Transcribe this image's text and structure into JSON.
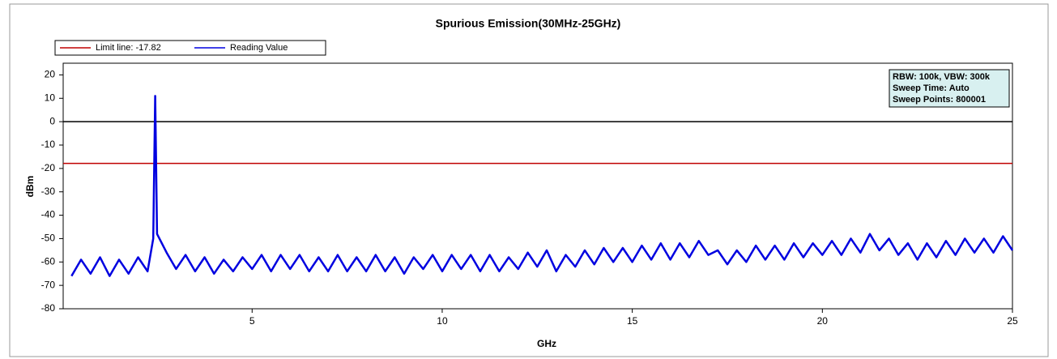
{
  "chart_data": {
    "type": "line",
    "title": "Spurious Emission(30MHz-25GHz)",
    "xlabel": "GHz",
    "ylabel": "dBm",
    "xlim": [
      0.03,
      25
    ],
    "ylim": [
      -80,
      25
    ],
    "xticks": [
      5,
      10,
      15,
      20,
      25
    ],
    "yticks": [
      -80,
      -70,
      -60,
      -50,
      -40,
      -30,
      -20,
      -10,
      0,
      10,
      20
    ],
    "reference_line": 0,
    "limit_line": {
      "name": "Limit line: -17.82",
      "value": -17.82,
      "color": "#c00000"
    },
    "annotation": [
      "RBW: 100k, VBW: 300k",
      "Sweep Time: Auto",
      "Sweep Points: 800001"
    ],
    "legend": "top-left",
    "x": [
      0.25,
      0.5,
      0.75,
      1.0,
      1.25,
      1.5,
      1.75,
      2.0,
      2.25,
      2.4,
      2.45,
      2.5,
      2.75,
      3.0,
      3.25,
      3.5,
      3.75,
      4.0,
      4.25,
      4.5,
      4.75,
      5.0,
      5.25,
      5.5,
      5.75,
      6.0,
      6.25,
      6.5,
      6.75,
      7.0,
      7.25,
      7.5,
      7.75,
      8.0,
      8.25,
      8.5,
      8.75,
      9.0,
      9.25,
      9.5,
      9.75,
      10.0,
      10.25,
      10.5,
      10.75,
      11.0,
      11.25,
      11.5,
      11.75,
      12.0,
      12.25,
      12.5,
      12.75,
      13.0,
      13.25,
      13.5,
      13.75,
      14.0,
      14.25,
      14.5,
      14.75,
      15.0,
      15.25,
      15.5,
      15.75,
      16.0,
      16.25,
      16.5,
      16.75,
      17.0,
      17.25,
      17.5,
      17.75,
      18.0,
      18.25,
      18.5,
      18.75,
      19.0,
      19.25,
      19.5,
      19.75,
      20.0,
      20.25,
      20.5,
      20.75,
      21.0,
      21.25,
      21.5,
      21.75,
      22.0,
      22.25,
      22.5,
      22.75,
      23.0,
      23.25,
      23.5,
      23.75,
      24.0,
      24.25,
      24.5,
      24.75,
      25.0
    ],
    "series": [
      {
        "name": "Reading Value",
        "color": "#0000e0",
        "values": [
          -66,
          -59,
          -65,
          -58,
          -66,
          -59,
          -65,
          -58,
          -64,
          -50,
          11,
          -48,
          -56,
          -63,
          -57,
          -64,
          -58,
          -65,
          -59,
          -64,
          -58,
          -63,
          -57,
          -64,
          -57,
          -63,
          -57,
          -64,
          -58,
          -64,
          -57,
          -64,
          -58,
          -64,
          -57,
          -64,
          -58,
          -65,
          -58,
          -63,
          -57,
          -64,
          -57,
          -63,
          -57,
          -64,
          -57,
          -64,
          -58,
          -63,
          -56,
          -62,
          -55,
          -64,
          -57,
          -62,
          -55,
          -61,
          -54,
          -60,
          -54,
          -60,
          -53,
          -59,
          -52,
          -59,
          -52,
          -58,
          -51,
          -57,
          -55,
          -61,
          -55,
          -60,
          -53,
          -59,
          -53,
          -59,
          -52,
          -58,
          -52,
          -57,
          -51,
          -57,
          -50,
          -56,
          -48,
          -55,
          -50,
          -57,
          -52,
          -59,
          -52,
          -58,
          -51,
          -57,
          -50,
          -56,
          -50,
          -56,
          -49,
          -55
        ]
      }
    ]
  }
}
